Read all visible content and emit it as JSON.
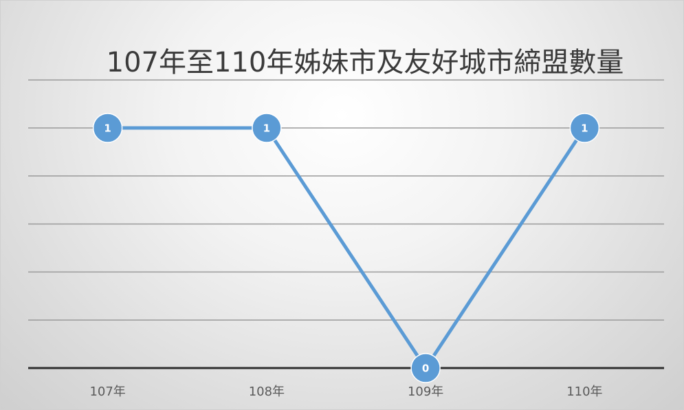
{
  "chart_data": {
    "type": "line",
    "title": "107年至110年姊妹市及友好城市締盟數量",
    "categories": [
      "107年",
      "108年",
      "109年",
      "110年"
    ],
    "series": [
      {
        "values": [
          1,
          1,
          0,
          1
        ],
        "color": "#5b9bd5"
      }
    ],
    "ylim": [
      0,
      1.2
    ],
    "grid": true,
    "legend": "none",
    "data_labels": true
  }
}
